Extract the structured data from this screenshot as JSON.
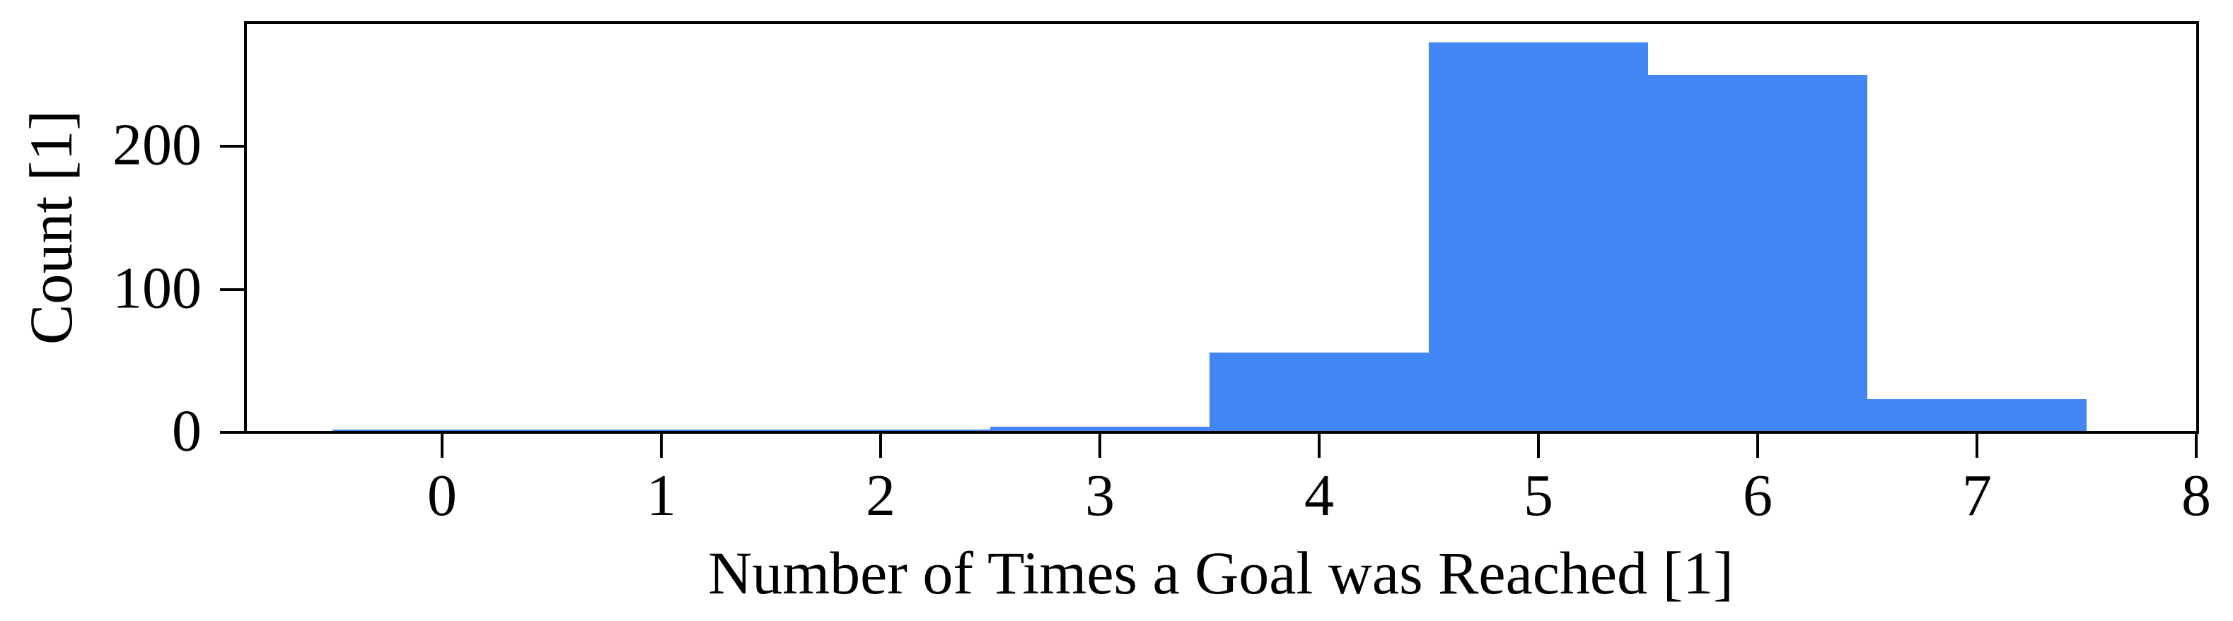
{
  "figure": {
    "background_color": "#ffffff",
    "axis_color": "#000000"
  },
  "chart_data": {
    "type": "bar",
    "subtype": "histogram",
    "title": "",
    "xlabel": "Number of Times a Goal was Reached [1]",
    "ylabel": "Count [1]",
    "categories": [
      0,
      1,
      2,
      3,
      4,
      5,
      6,
      7
    ],
    "values": [
      1,
      1,
      1,
      3,
      55,
      272,
      249,
      22
    ],
    "bin_width": 1,
    "bin_edges": [
      -0.5,
      0.5,
      1.5,
      2.5,
      3.5,
      4.5,
      5.5,
      6.5,
      7.5
    ],
    "x_tick_labels": [
      "0",
      "1",
      "2",
      "3",
      "4",
      "5",
      "6",
      "7",
      "8"
    ],
    "x_tick_values": [
      0,
      1,
      2,
      3,
      4,
      5,
      6,
      7,
      8
    ],
    "y_tick_labels": [
      "0",
      "100",
      "200"
    ],
    "y_tick_values": [
      0,
      100,
      200
    ],
    "xlim": [
      -0.9,
      8
    ],
    "ylim": [
      0,
      285.6
    ],
    "grid": false,
    "legend": "none",
    "bar_color": "#4285F4"
  }
}
